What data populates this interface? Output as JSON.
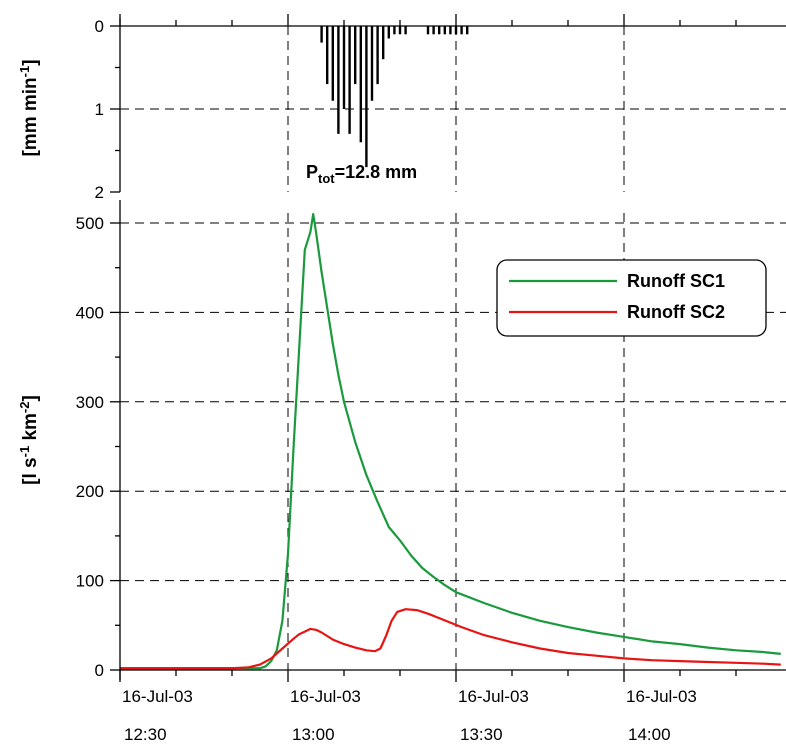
{
  "chart_data": [
    {
      "type": "bar",
      "panel": "precipitation",
      "ylabel": "[mm min-1]",
      "ylabel_parts": {
        "base": "[mm min",
        "sup": "-1",
        "end": "]"
      },
      "ylim": [
        0,
        2
      ],
      "y_inverted": true,
      "yticks": [
        "0",
        "1",
        "2"
      ],
      "grid": true,
      "annotation": {
        "prefix": "P",
        "sub": "tot",
        "suffix": "=12.8 mm"
      },
      "x_minutes_from_start": [
        36,
        37,
        38,
        39,
        40,
        41,
        42,
        43,
        44,
        45,
        46,
        47,
        48,
        49,
        50,
        51,
        55,
        56,
        57,
        58,
        59,
        60,
        61,
        62
      ],
      "values": [
        0.2,
        0.7,
        0.9,
        1.3,
        1.0,
        1.3,
        0.7,
        1.4,
        1.7,
        0.9,
        0.7,
        0.4,
        0.15,
        0.1,
        0.1,
        0.1,
        0.1,
        0.1,
        0.1,
        0.1,
        0.1,
        0.1,
        0.1,
        0.1
      ]
    },
    {
      "type": "line",
      "panel": "runoff",
      "ylabel": "[l s-1 km-2]",
      "ylabel_parts": {
        "a": "[l s",
        "sup1": "-1",
        "b": " km",
        "sup2": "-2",
        "c": "]"
      },
      "ylim": [
        0,
        520
      ],
      "yticks": [
        "0",
        "100",
        "200",
        "300",
        "400",
        "500"
      ],
      "xticks": [
        {
          "line1": "16-Jul-03",
          "line2": "12:30"
        },
        {
          "line1": "16-Jul-03",
          "line2": "13:00"
        },
        {
          "line1": "16-Jul-03",
          "line2": "13:30"
        },
        {
          "line1": "16-Jul-03",
          "line2": "14:00"
        }
      ],
      "xlim": [
        "12:30",
        "14:00"
      ],
      "grid": true,
      "legend_position": "top-right",
      "series": [
        {
          "name": "Runoff SC1",
          "color": "#1a9a3c",
          "points": [
            [
              0,
              2
            ],
            [
              10,
              2
            ],
            [
              20,
              2
            ],
            [
              25,
              2
            ],
            [
              26,
              4
            ],
            [
              27,
              10
            ],
            [
              28,
              22
            ],
            [
              29,
              55
            ],
            [
              30,
              130
            ],
            [
              31,
              250
            ],
            [
              32,
              360
            ],
            [
              33,
              470
            ],
            [
              34,
              490
            ],
            [
              34.5,
              510
            ],
            [
              35,
              490
            ],
            [
              36,
              445
            ],
            [
              37,
              405
            ],
            [
              38,
              365
            ],
            [
              39,
              330
            ],
            [
              40,
              300
            ],
            [
              42,
              255
            ],
            [
              44,
              218
            ],
            [
              46,
              188
            ],
            [
              48,
              160
            ],
            [
              50,
              145
            ],
            [
              52,
              128
            ],
            [
              54,
              114
            ],
            [
              56,
              104
            ],
            [
              58,
              95
            ],
            [
              60,
              87
            ],
            [
              65,
              75
            ],
            [
              70,
              64
            ],
            [
              75,
              55
            ],
            [
              80,
              48
            ],
            [
              85,
              42
            ],
            [
              90,
              37
            ],
            [
              95,
              32
            ],
            [
              100,
              29
            ],
            [
              105,
              25
            ],
            [
              110,
              22
            ],
            [
              115,
              20
            ],
            [
              118,
              18
            ]
          ]
        },
        {
          "name": "Runoff SC2",
          "color": "#e81414",
          "points": [
            [
              0,
              2
            ],
            [
              10,
              2
            ],
            [
              20,
              2
            ],
            [
              23,
              3
            ],
            [
              25,
              6
            ],
            [
              27,
              13
            ],
            [
              29,
              24
            ],
            [
              31,
              35
            ],
            [
              32,
              40
            ],
            [
              33,
              43
            ],
            [
              34,
              46
            ],
            [
              35,
              45
            ],
            [
              36,
              42
            ],
            [
              37,
              38
            ],
            [
              38,
              34
            ],
            [
              40,
              29
            ],
            [
              42,
              25
            ],
            [
              44,
              22
            ],
            [
              45.5,
              21
            ],
            [
              46.5,
              24
            ],
            [
              47.5,
              38
            ],
            [
              48.5,
              55
            ],
            [
              49.5,
              65
            ],
            [
              51,
              68
            ],
            [
              53,
              67
            ],
            [
              55,
              63
            ],
            [
              57,
              58
            ],
            [
              59,
              53
            ],
            [
              61,
              48
            ],
            [
              65,
              39
            ],
            [
              70,
              31
            ],
            [
              75,
              24
            ],
            [
              80,
              19
            ],
            [
              85,
              16
            ],
            [
              90,
              13
            ],
            [
              95,
              11
            ],
            [
              100,
              10
            ],
            [
              105,
              9
            ],
            [
              110,
              8
            ],
            [
              115,
              7
            ],
            [
              118,
              6
            ]
          ]
        }
      ]
    }
  ]
}
